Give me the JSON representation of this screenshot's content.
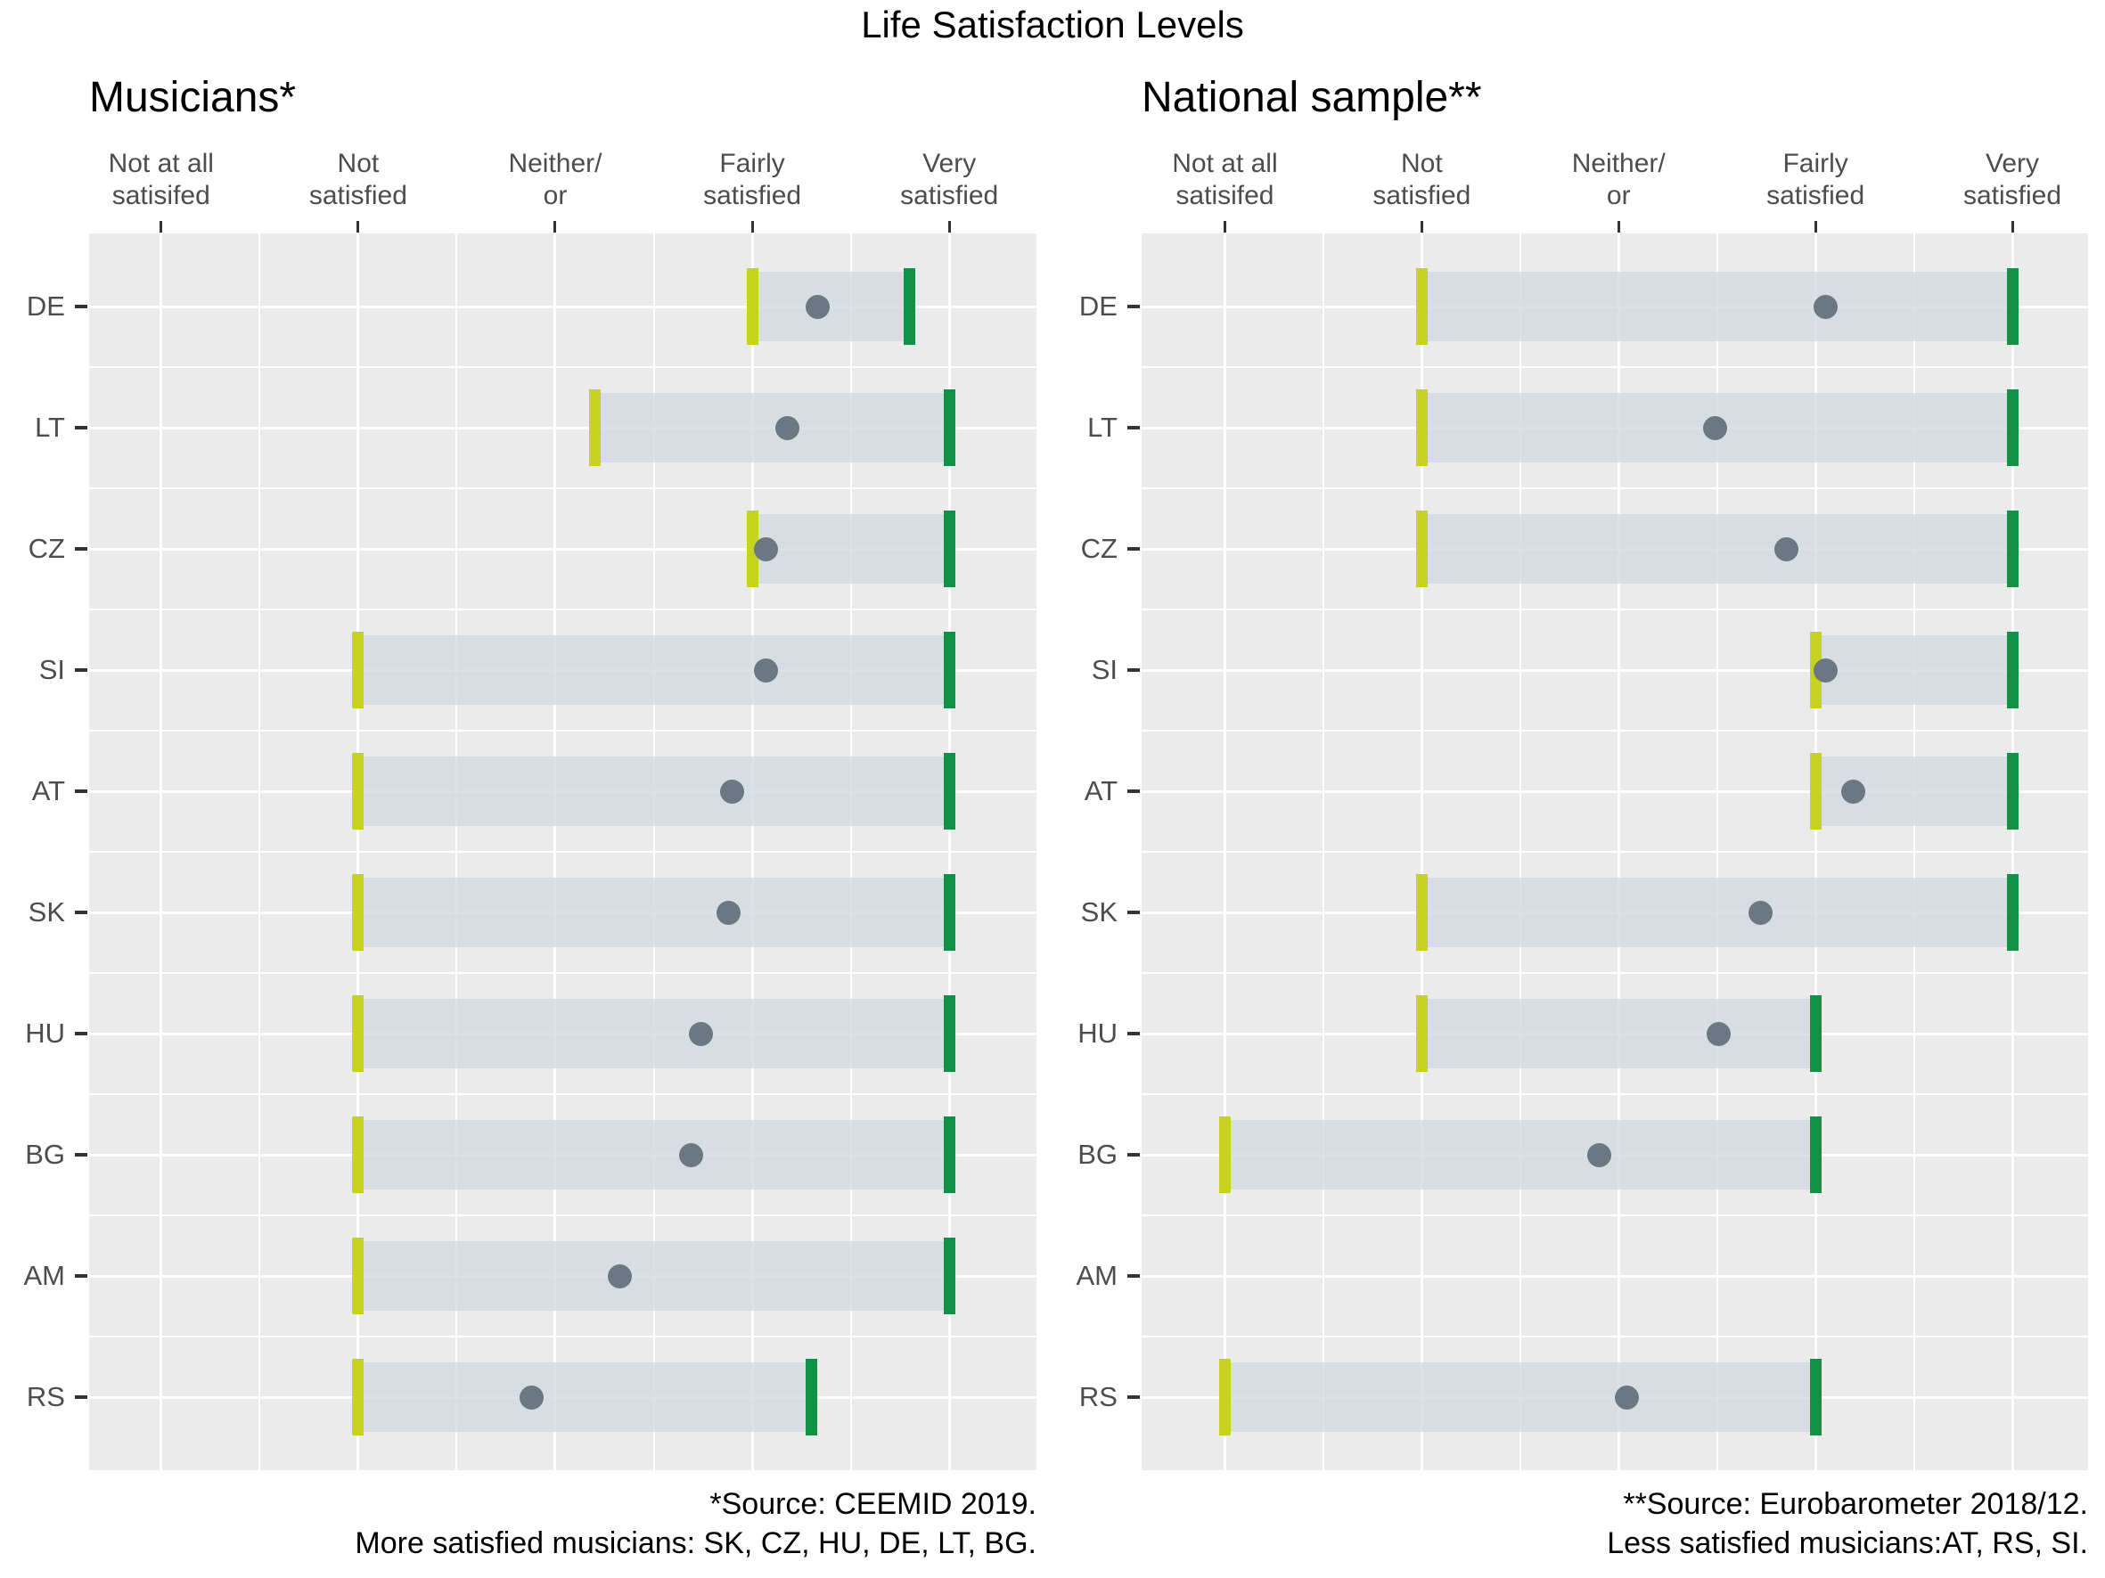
{
  "title": "Life Satisfaction Levels",
  "chart_data": {
    "type": "bar",
    "subtype": "horizontal-range-bars-with-mean-dot (dumbbell/crossbar)",
    "title": "Life Satisfaction Levels",
    "legend": "none",
    "x_axis": {
      "range": [
        1,
        5
      ],
      "scale_values": [
        1,
        2,
        3,
        4,
        5
      ],
      "tick_labels": [
        "Not at all\nsatisifed",
        "Not\nsatisfied",
        "Neither/\nor",
        "Fairly\nsatisfied",
        "Very\nsatisfied"
      ],
      "grid": "white major gridlines at each level, white minor gridlines at half levels, gray panel background"
    },
    "categories": [
      "DE",
      "LT",
      "CZ",
      "SI",
      "AT",
      "SK",
      "HU",
      "BG",
      "AM",
      "RS"
    ],
    "panels": [
      {
        "label": "Musicians*",
        "footnote_lines": [
          "*Source: CEEMID 2019.",
          "More satisfied musicians: SK, CZ, HU, DE, LT, BG."
        ],
        "rows": [
          {
            "country": "DE",
            "low": 4.0,
            "high": 4.8,
            "mean": 4.33
          },
          {
            "country": "LT",
            "low": 3.2,
            "high": 5.0,
            "mean": 4.18
          },
          {
            "country": "CZ",
            "low": 4.0,
            "high": 5.0,
            "mean": 4.07
          },
          {
            "country": "SI",
            "low": 2.0,
            "high": 5.0,
            "mean": 4.07
          },
          {
            "country": "AT",
            "low": 2.0,
            "high": 5.0,
            "mean": 3.9
          },
          {
            "country": "SK",
            "low": 2.0,
            "high": 5.0,
            "mean": 3.88
          },
          {
            "country": "HU",
            "low": 2.0,
            "high": 5.0,
            "mean": 3.74
          },
          {
            "country": "BG",
            "low": 2.0,
            "high": 5.0,
            "mean": 3.69
          },
          {
            "country": "AM",
            "low": 2.0,
            "high": 5.0,
            "mean": 3.33
          },
          {
            "country": "RS",
            "low": 2.0,
            "high": 4.3,
            "mean": 2.88
          }
        ]
      },
      {
        "label": "National sample**",
        "footnote_lines": [
          "**Source: Eurobarometer 2018/12.",
          "Less satisfied musicians:AT, RS, SI."
        ],
        "rows": [
          {
            "country": "DE",
            "low": 2.0,
            "high": 5.0,
            "mean": 4.05
          },
          {
            "country": "LT",
            "low": 2.0,
            "high": 5.0,
            "mean": 3.49
          },
          {
            "country": "CZ",
            "low": 2.0,
            "high": 5.0,
            "mean": 3.85
          },
          {
            "country": "SI",
            "low": 4.0,
            "high": 5.0,
            "mean": 4.05
          },
          {
            "country": "AT",
            "low": 4.0,
            "high": 5.0,
            "mean": 4.19
          },
          {
            "country": "SK",
            "low": 2.0,
            "high": 5.0,
            "mean": 3.72
          },
          {
            "country": "HU",
            "low": 2.0,
            "high": 4.0,
            "mean": 3.51
          },
          {
            "country": "BG",
            "low": 1.0,
            "high": 4.0,
            "mean": 2.9
          },
          {
            "country": "AM",
            "low": null,
            "high": null,
            "mean": null
          },
          {
            "country": "RS",
            "low": 1.0,
            "high": 4.0,
            "mean": 3.04
          }
        ]
      }
    ],
    "colors": {
      "low_marker": "#c6d41f",
      "high_marker": "#0f9246",
      "mean_dot": "#6b7883",
      "bar_fill_rgba": "rgba(209,219,223,0.8)",
      "panel_bg": "#ebebeb",
      "grid": "#ffffff",
      "axis_text": "#4d4d4d",
      "tick_mark": "#333333",
      "text": "#000000"
    }
  }
}
